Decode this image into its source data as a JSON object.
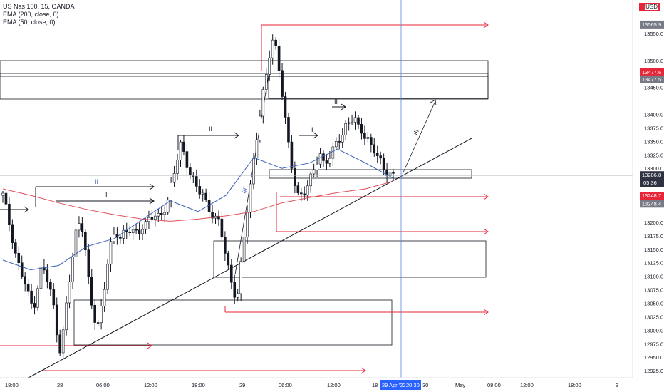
{
  "legend": {
    "title": "US Nas 100, 15, OANDA",
    "ema200": "EMA (200, close, 0)",
    "ema50": "EMA (50, close, 0)"
  },
  "currency": "USD",
  "colors": {
    "up": "#ffffff",
    "down": "#131722",
    "ema200": "#e0505a",
    "ema50": "#3a5fb8",
    "red_line": "#e8263a",
    "crosshair_v": "#5b7fe8",
    "crosshair_h": "#b2b5be",
    "label_red": "#e8263a",
    "label_dark": "#2f3241",
    "label_grey": "#787b86",
    "label_blue": "#2962ff"
  },
  "chart_data": {
    "type": "candlestick",
    "symbol": "US Nas 100",
    "timeframe": "15",
    "source": "OANDA",
    "ylim": [
      12912,
      13612
    ],
    "y_ticks": [
      13550.0,
      13500.0,
      13450.0,
      13400.0,
      13375.0,
      13350.0,
      13325.0,
      13300.0,
      13250.0,
      13200.0,
      13175.0,
      13150.0,
      13125.0,
      13100.0,
      13075.0,
      13050.0,
      13025.0,
      13000.0,
      12975.0,
      12950.0,
      12925.0
    ],
    "x_ticks": [
      "18:00",
      "28",
      "06:00",
      "12:00",
      "18:00",
      "29",
      "06:00",
      "12:00",
      "18",
      "30",
      "May",
      "08:00",
      "12:00",
      "18:00",
      "3"
    ],
    "price_labels": [
      {
        "text": "13565.9",
        "value": 13565.9,
        "style": "grey"
      },
      {
        "text": "13477.6",
        "value": 13477.6,
        "style": "red"
      },
      {
        "text": "13477.5",
        "value": 13477.5,
        "style": "grey"
      },
      {
        "text": "13286.8",
        "value": 13286.8,
        "style": "dark",
        "sub": "05:36"
      },
      {
        "text": "13248.7",
        "value": 13248.7,
        "style": "red"
      },
      {
        "text": "13248.4",
        "value": 13248.4,
        "style": "grey"
      }
    ],
    "crosshair_time_label": "29 Apr '22",
    "crosshair_time_label2": "20:30",
    "annotations": [
      {
        "text": "II",
        "color": "#3a5fb8"
      },
      {
        "text": "I",
        "color": "#131722"
      },
      {
        "text": "II",
        "color": "#131722"
      },
      {
        "text": "I",
        "color": "#131722"
      },
      {
        "text": "II",
        "color": "#131722"
      },
      {
        "text": "III",
        "color": "#3a5fb8"
      },
      {
        "text": "III",
        "color": "#131722"
      }
    ],
    "path_points": [
      13250,
      13215,
      13180,
      13140,
      13110,
      13090,
      13060,
      13040,
      13080,
      13120,
      13100,
      13070,
      13030,
      12960,
      13000,
      13070,
      13130,
      13190,
      13210,
      13150,
      13070,
      13020,
      13010,
      13060,
      13120,
      13160,
      13180,
      13170,
      13185,
      13190,
      13180,
      13175,
      13190,
      13200,
      13215,
      13210,
      13205,
      13220,
      13240,
      13280,
      13310,
      13340,
      13320,
      13295,
      13280,
      13260,
      13250,
      13230,
      13220,
      13210,
      13200,
      13150,
      13110,
      13080,
      13060,
      13130,
      13200,
      13260,
      13330,
      13390,
      13440,
      13480,
      13540,
      13520,
      13470,
      13400,
      13330,
      13280,
      13250,
      13255,
      13265,
      13280,
      13300,
      13330,
      13310,
      13320,
      13330,
      13345,
      13360,
      13380,
      13390,
      13395,
      13370,
      13365,
      13360,
      13340,
      13330,
      13310,
      13290,
      13300,
      13286.8
    ],
    "ema200": [
      13262,
      13250,
      13236,
      13224,
      13214,
      13206,
      13202,
      13206,
      13212,
      13220,
      13236,
      13246,
      13255,
      13262,
      13276
    ],
    "ema50": [
      13130,
      13112,
      13120,
      13155,
      13170,
      13205,
      13240,
      13220,
      13250,
      13320,
      13300,
      13310,
      13336,
      13310,
      13282
    ]
  }
}
